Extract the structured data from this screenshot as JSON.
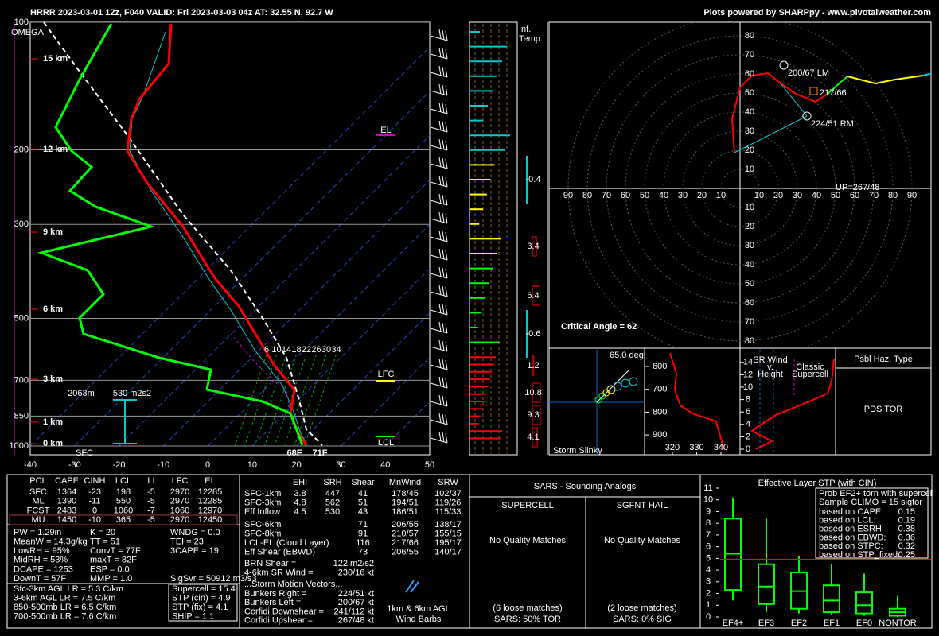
{
  "header": {
    "title": "HRRR 2023-03-01 12z, F040  VALID: Fri 2023-03-03 04z  AT: 32.55 N, 92.7 W",
    "credit": "Plots powered by SHARPpy - www.pivotalweather.com"
  },
  "skewt": {
    "omega_label": "OMEGA",
    "pressure_lim": [
      100,
      1000
    ],
    "pressure_ticks": [
      100,
      200,
      300,
      500,
      700,
      850,
      1000
    ],
    "temp_lim": [
      -40,
      50
    ],
    "temp_ticks": [
      -40,
      -30,
      -20,
      -10,
      0,
      10,
      20,
      30,
      40,
      50
    ],
    "height_labels": [
      "15 km",
      "12 km",
      "9 km",
      "6 km",
      "3 km",
      "1 km",
      "0 km"
    ],
    "mixing_ratio_labels": [
      6,
      10,
      14,
      18,
      22,
      26,
      30,
      34
    ],
    "el": "EL",
    "lfc": "LFC",
    "lcl": "LCL",
    "sfc": "SFC",
    "sfc_dewpoint": "68F",
    "sfc_temp": "71F",
    "inflow_depth": "2063m",
    "inflow_srh": "530 m2s2"
  },
  "inferred_temp": {
    "title": [
      "Inf.",
      "Temp."
    ],
    "values": [
      -0.4,
      3.4,
      6.4,
      -0.6,
      1.2,
      10.8,
      9.3,
      4.1
    ]
  },
  "hodograph": {
    "horizontal_ticks": [
      10,
      20,
      30,
      40,
      50,
      60,
      70,
      80,
      90
    ],
    "vertical_ticks": [
      10,
      20,
      30,
      40,
      50,
      60,
      70,
      80
    ],
    "left_mover": "200/67 LM",
    "mean_wind": "217/66",
    "right_mover": "224/51 RM",
    "upshear": "UP=267/48",
    "critical_angle": "Critical Angle = 62"
  },
  "slinky": {
    "angle": "65.0 deg",
    "title": "Storm Slinky"
  },
  "theta": {
    "pressure_ticks": [
      600,
      700,
      800,
      900
    ],
    "theta_ticks": [
      320,
      330,
      340
    ]
  },
  "sr_wind": {
    "title": [
      "SR Wind",
      "v.",
      "Height"
    ],
    "height_ticks": [
      0,
      2,
      4,
      6,
      8,
      10,
      12,
      14
    ],
    "annotation": [
      "Classic",
      "Supercell"
    ]
  },
  "hazard": {
    "title": "Psbl Haz. Type",
    "type": "PDS TOR"
  },
  "parcels": {
    "header": [
      "PCL",
      "CAPE",
      "CINH",
      "LCL",
      "LI",
      "LFC",
      "EL"
    ],
    "rows": [
      [
        "SFC",
        1364,
        -23,
        198,
        -5,
        2970,
        12285
      ],
      [
        "ML",
        1390,
        -11,
        550,
        -5,
        2970,
        12285
      ],
      [
        "FCST",
        2483,
        0,
        1060,
        -7,
        1060,
        12970
      ],
      [
        "MU",
        1450,
        -10,
        365,
        -5,
        2970,
        12450
      ]
    ]
  },
  "indices": {
    "col1": [
      "PW = 1.29in",
      "MeanW = 14.3g/kg",
      "LowRH = 95%",
      "MidRH = 53%",
      "DCAPE = 1253",
      "DownT = 57F"
    ],
    "col2": [
      "K = 20",
      "TT = 51",
      "ConvT = 77F",
      "maxT = 82F",
      "ESP = 0.0",
      "MMP = 1.0"
    ],
    "col3": [
      "WNDG = 0.0",
      "TEI = 23",
      "3CAPE = 19"
    ],
    "sigsvr": "SigSvr = 50912 m3/s3",
    "lapse_rates": [
      "Sfc-3km AGL LR = 5.3 C/km",
      "3-6km AGL LR = 7.5 C/km",
      "850-500mb LR = 6.5 C/km",
      "700-500mb LR = 7.6 C/km"
    ],
    "severe": [
      "Supercell = 15.4",
      "STP (cin) = 4.9",
      "STP (fix) = 4.1",
      "SHIP = 1.1"
    ]
  },
  "kinematics": {
    "header": [
      "EHI",
      "SRH",
      "Shear",
      "MnWind",
      "SRW"
    ],
    "rows_full": [
      [
        "SFC-1km",
        3.8,
        447,
        41,
        "178/45",
        "102/37"
      ],
      [
        "SFC-3km",
        4.8,
        562,
        51,
        "194/51",
        "119/26"
      ],
      [
        "Eff Inflow",
        4.5,
        530,
        43,
        "186/51",
        "115/33"
      ]
    ],
    "rows_shear": [
      [
        "SFC-6km",
        71,
        "206/55",
        "138/17"
      ],
      [
        "SFC-8km",
        91,
        "210/57",
        "155/15"
      ],
      [
        "LCL-EL (Cloud Layer)",
        116,
        "217/66",
        "195/17"
      ],
      [
        "Eff Shear (EBWD)",
        73,
        "206/55",
        "140/17"
      ]
    ],
    "pairs": [
      [
        "BRN Shear =",
        "122 m2/s2"
      ],
      [
        "4-6km SR Wind =",
        "230/16 kt"
      ]
    ],
    "motion_title": "...Storm Motion Vectors...",
    "motion": [
      [
        "Bunkers Right =",
        "224/51 kt"
      ],
      [
        "Bunkers Left =",
        "200/67 kt"
      ],
      [
        "Corfidi Downshear =",
        "241/112 kt"
      ],
      [
        "Corfidi Upshear =",
        "267/48 kt"
      ]
    ],
    "barb_caption": [
      "1km & 6km AGL",
      "Wind Barbs"
    ]
  },
  "sars": {
    "title": "SARS - Sounding Analogs",
    "supercell": {
      "title": "SUPERCELL",
      "quality": "No Quality Matches",
      "loose": "(6 loose matches)",
      "result": "SARS: 50% TOR"
    },
    "hail": {
      "title": "SGFNT HAIL",
      "quality": "No Quality Matches",
      "loose": "(2 loose matches)",
      "result": "SARS: 0% SIG"
    }
  },
  "stp": {
    "title": "Effective Layer STP (with CIN)",
    "ylim": [
      0,
      11
    ],
    "yticks": [
      0,
      1,
      2,
      3,
      4,
      5,
      6,
      7,
      8,
      9,
      10,
      11
    ],
    "categories": [
      "EF4+",
      "EF3",
      "EF2",
      "EF1",
      "EF0",
      "NONTOR"
    ],
    "boxes": [
      [
        1.4,
        2.3,
        5.4,
        8.4,
        10.2
      ],
      [
        0.4,
        1.1,
        2.6,
        4.5,
        8.4
      ],
      [
        0.3,
        0.7,
        2.2,
        3.8,
        5.2
      ],
      [
        0.2,
        0.4,
        1.4,
        2.7,
        4.5
      ],
      [
        0.1,
        0.3,
        1.0,
        2.1,
        3.7
      ],
      [
        0,
        0.1,
        0.4,
        0.7,
        1.8
      ]
    ],
    "current": 4.9,
    "legend_title": [
      "Prob EF2+ torn with supercell",
      "Sample CLIMO = 15 sigtor"
    ],
    "legend_rows": [
      [
        "based on CAPE:",
        0.15
      ],
      [
        "based on LCL:",
        0.19
      ],
      [
        "based on ESRH:",
        0.38
      ],
      [
        "based on EBWD:",
        0.36
      ],
      [
        "based on STPC:",
        0.32
      ],
      [
        "based on STP_fixed:",
        0.25
      ]
    ]
  }
}
